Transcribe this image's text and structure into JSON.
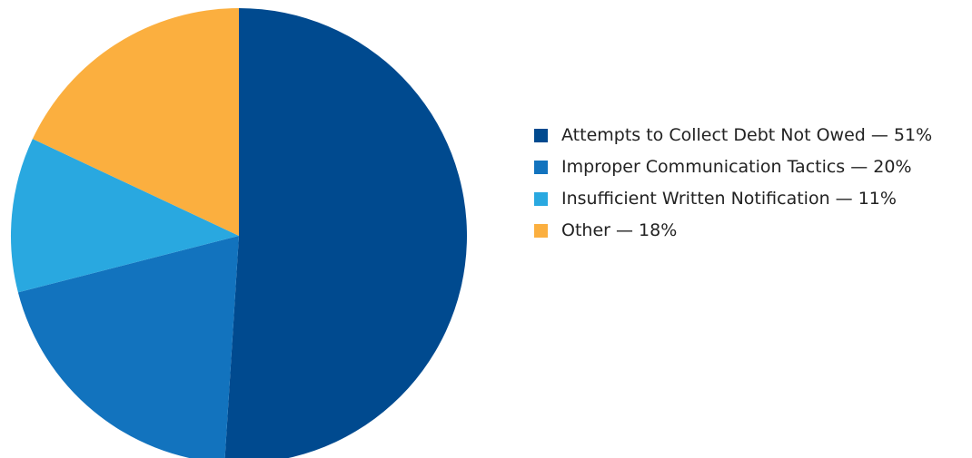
{
  "chart_data": {
    "type": "pie",
    "title": "",
    "legend_position": "right",
    "slices": [
      {
        "label": "Attempts to Collect Debt Not Owed — 51%",
        "value": 51,
        "color": "#004a8f"
      },
      {
        "label": "Improper Communication Tactics — 20%",
        "value": 20,
        "color": "#1273be"
      },
      {
        "label": "Insufficient Written Notification — 11%",
        "value": 11,
        "color": "#29a8e0"
      },
      {
        "label": "Other — 18%",
        "value": 18,
        "color": "#fbaf3f"
      }
    ]
  }
}
